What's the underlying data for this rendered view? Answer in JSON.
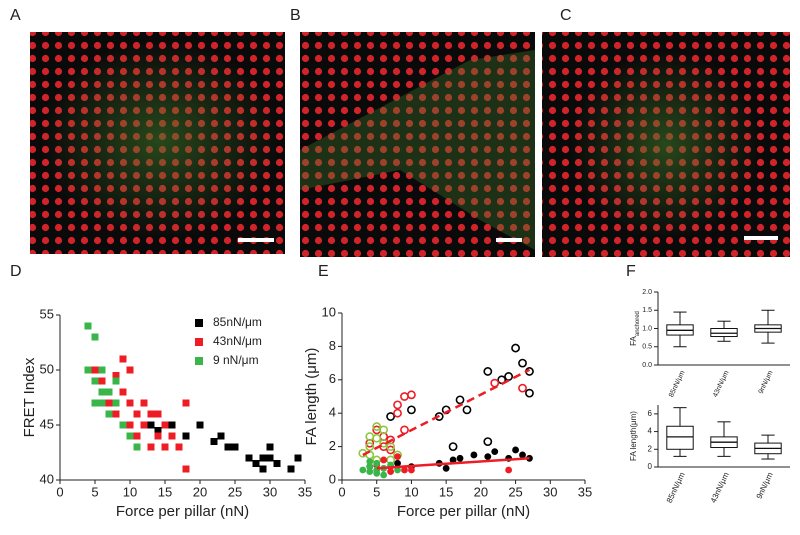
{
  "panel_labels": [
    "A",
    "B",
    "C",
    "D",
    "E",
    "F"
  ],
  "chart_data": [
    {
      "type": "scatter",
      "xlabel": "Force per pillar (nN)",
      "ylabel": "FRET Index",
      "xlim": [
        0,
        35
      ],
      "xticks": [
        0,
        5,
        10,
        15,
        20,
        25,
        30,
        35
      ],
      "ylim": [
        40,
        55
      ],
      "yticks": [
        40,
        45,
        50,
        55
      ],
      "legend": "upper right",
      "marker": "square",
      "series": [
        {
          "name": "85nN/μm",
          "color": "#000000",
          "x": [
            10,
            11,
            13,
            14,
            16,
            18,
            20,
            22,
            23,
            24,
            25,
            27,
            28,
            29,
            30,
            31,
            33,
            34,
            29,
            30
          ],
          "values": [
            47,
            46,
            45,
            44.5,
            45,
            44,
            45,
            43.5,
            44,
            43,
            43,
            42,
            41.5,
            42,
            43,
            41.5,
            41,
            42,
            41,
            42
          ]
        },
        {
          "name": "43nN/μm",
          "color": "#ee1c24",
          "x": [
            5,
            6,
            7,
            8,
            9,
            9,
            10,
            10,
            11,
            12,
            12,
            13,
            14,
            15,
            16,
            17,
            18,
            18,
            11,
            13,
            14,
            8,
            7,
            10,
            15
          ],
          "values": [
            50,
            49,
            48,
            49.5,
            51,
            48,
            50,
            47,
            46,
            47,
            45,
            46,
            44,
            45,
            44,
            43,
            47,
            41,
            44,
            43,
            46,
            46,
            47,
            45,
            43
          ]
        },
        {
          "name": "9 nN/μm",
          "color": "#3ab54a",
          "x": [
            4,
            4,
            5,
            5,
            6,
            6,
            7,
            7,
            8,
            8,
            9,
            10,
            11,
            5,
            6
          ],
          "values": [
            54,
            50,
            49,
            53,
            48,
            47,
            48,
            46,
            47,
            49,
            45,
            44,
            43,
            47,
            50
          ]
        }
      ]
    },
    {
      "type": "scatter",
      "xlabel": "Force per pillar (nN)",
      "ylabel": "FA length (μm)",
      "xlim": [
        0,
        35
      ],
      "xticks": [
        0,
        5,
        10,
        15,
        20,
        25,
        30,
        35
      ],
      "ylim": [
        0,
        10
      ],
      "yticks": [
        0,
        2,
        4,
        6,
        8,
        10
      ],
      "marker": "circle",
      "series": [
        {
          "color": "#000000",
          "fill": "open",
          "x": [
            7,
            10,
            14,
            15,
            16,
            17,
            18,
            21,
            21,
            23,
            24,
            25,
            26,
            27,
            27
          ],
          "values": [
            3.8,
            4.2,
            3.8,
            4.2,
            2.0,
            4.8,
            4.2,
            6.5,
            2.3,
            6.0,
            6.2,
            7.9,
            7.0,
            5.2,
            6.5
          ]
        },
        {
          "color": "#ee1c24",
          "fill": "open",
          "x": [
            4,
            5,
            6,
            7,
            8,
            8,
            9,
            10,
            9,
            22,
            26,
            6,
            7
          ],
          "values": [
            2.2,
            3.0,
            2.6,
            2.4,
            4.5,
            4.0,
            5.0,
            5.1,
            3.0,
            5.8,
            5.5,
            2.0,
            1.8
          ]
        },
        {
          "color": "#8dc63f",
          "fill": "open",
          "x": [
            3,
            4,
            4,
            5,
            5,
            6,
            6,
            7,
            4,
            5,
            8,
            7
          ],
          "values": [
            1.6,
            2.0,
            2.6,
            3.2,
            2.5,
            2.2,
            3.0,
            2.0,
            1.5,
            1.2,
            1.5,
            1.2
          ]
        },
        {
          "color": "#000000",
          "fill": "filled",
          "x": [
            4,
            8,
            10,
            14,
            16,
            17,
            19,
            21,
            22,
            24,
            25,
            26,
            27,
            15
          ],
          "values": [
            0.8,
            1.0,
            0.8,
            1.0,
            1.2,
            1.3,
            1.5,
            1.4,
            1.7,
            1.3,
            1.8,
            1.5,
            1.3,
            0.7
          ]
        },
        {
          "color": "#ee1c24",
          "fill": "filled",
          "x": [
            5,
            6,
            7,
            8,
            9,
            10,
            24,
            7
          ],
          "values": [
            0.9,
            1.2,
            0.8,
            1.4,
            0.6,
            0.6,
            0.6,
            0.5
          ]
        },
        {
          "color": "#3ab54a",
          "fill": "filled",
          "x": [
            3,
            4,
            4,
            5,
            5,
            6,
            6,
            7,
            4,
            8,
            5
          ],
          "values": [
            0.6,
            0.8,
            0.5,
            0.4,
            1.0,
            0.7,
            0.3,
            0.9,
            1.1,
            0.6,
            0.6
          ]
        },
        {
          "color": "#ee1c24",
          "mode": "line",
          "style": "dashed",
          "x": [
            3,
            27
          ],
          "values": [
            1.5,
            6.6
          ]
        },
        {
          "color": "#ee1c24",
          "mode": "line",
          "style": "solid",
          "x": [
            5,
            27
          ],
          "values": [
            0.7,
            1.3
          ]
        }
      ]
    },
    {
      "type": "boxplot",
      "ylabel": "FA",
      "ylabel_subscript": "anchored",
      "categories": [
        "85nN/μm",
        "43nN/μm",
        "9nN/μm"
      ],
      "ylim": [
        0,
        2
      ],
      "yticks": [
        {
          "value": 0,
          "label": "0.0"
        },
        {
          "value": 0.5,
          "label": "0.5"
        },
        {
          "value": 1,
          "label": "1.0"
        },
        {
          "value": 1.5,
          "label": "1.5"
        },
        {
          "value": 2,
          "label": "2.0"
        }
      ],
      "boxes": [
        {
          "min": 0.5,
          "q1": 0.82,
          "median": 0.95,
          "q3": 1.1,
          "max": 1.45
        },
        {
          "min": 0.65,
          "q1": 0.78,
          "median": 0.87,
          "q3": 1.0,
          "max": 1.2
        },
        {
          "min": 0.6,
          "q1": 0.9,
          "median": 1.0,
          "q3": 1.1,
          "max": 1.5
        }
      ]
    },
    {
      "type": "boxplot",
      "ylabel": "FA length(μm)",
      "categories": [
        "85nN/μm",
        "43nN/μm",
        "9nN/μm"
      ],
      "ylim": [
        0,
        7
      ],
      "yticks": [
        0,
        2,
        4,
        6
      ],
      "boxes": [
        {
          "min": 1.2,
          "q1": 2.0,
          "median": 3.4,
          "q3": 4.6,
          "max": 6.7
        },
        {
          "min": 1.2,
          "q1": 2.2,
          "median": 2.8,
          "q3": 3.4,
          "max": 5.1
        },
        {
          "min": 0.9,
          "q1": 1.5,
          "median": 2.1,
          "q3": 2.7,
          "max": 3.6
        }
      ]
    }
  ]
}
